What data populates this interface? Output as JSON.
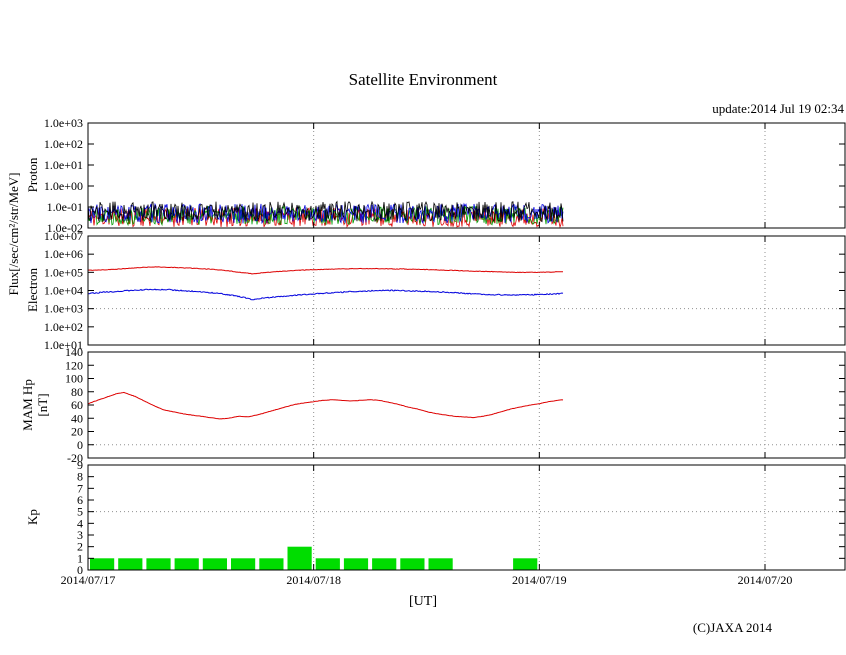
{
  "title": "Satellite Environment",
  "update_text": "update:2014 Jul 19 02:34",
  "xlabel": "[UT]",
  "footer": "(C)JAXA 2014",
  "axis_labels": {
    "flux": "Flux[/sec/cm²/str/MeV]",
    "proton": "Proton",
    "electron": "Electron",
    "hp_line1": "MAM Hp",
    "hp_line2": "[nT]",
    "kp": "Kp"
  },
  "x_ticks": [
    "2014/07/17",
    "2014/07/18",
    "2014/07/19",
    "2014/07/20"
  ],
  "colors": {
    "grid": "#909090",
    "frame": "#000000",
    "red": "#dd0000",
    "blue": "#0000dd",
    "green_noise": "#009900",
    "black_noise": "#000000",
    "kp_green": "#00dd00"
  },
  "chart_data": [
    {
      "id": "proton",
      "type": "line",
      "panel_title": "Proton",
      "yscale": "log",
      "ylim": [
        0.01,
        1000
      ],
      "ytick_values": [
        1000,
        100,
        10,
        1,
        0.1,
        0.01
      ],
      "ytick_labels": [
        "1.0e+03",
        "1.0e+02",
        "1.0e+01",
        "1.0e+00",
        "1.0e-01",
        "1.0e-02"
      ],
      "x_range_hours": [
        0,
        72
      ],
      "x_end_hours": 50.6,
      "series": [
        {
          "name": "proton-red-noise",
          "color": "#dd0000",
          "render": "noise",
          "log_range": [
            -1.95,
            -1.05
          ],
          "seed": 11
        },
        {
          "name": "proton-green-noise",
          "color": "#009900",
          "render": "noise",
          "log_range": [
            -1.85,
            -0.95
          ],
          "seed": 22
        },
        {
          "name": "proton-blue-noise",
          "color": "#0000dd",
          "render": "noise",
          "log_range": [
            -1.78,
            -0.85
          ],
          "seed": 33
        },
        {
          "name": "proton-black-noise",
          "color": "#000000",
          "render": "noise",
          "log_range": [
            -1.7,
            -0.74
          ],
          "seed": 44
        }
      ]
    },
    {
      "id": "electron",
      "type": "line",
      "panel_title": "Electron",
      "yscale": "log",
      "ylim": [
        10,
        10000000.0
      ],
      "ytick_values": [
        10000000.0,
        1000000.0,
        100000.0,
        10000.0,
        1000.0,
        100,
        10
      ],
      "ytick_labels": [
        "1.0e+07",
        "1.0e+06",
        "1.0e+05",
        "1.0e+04",
        "1.0e+03",
        "1.0e+02",
        "1.0e+01"
      ],
      "threshold": 1000,
      "x_range_hours": [
        0,
        72
      ],
      "x_end_hours": 50.6,
      "series": [
        {
          "name": "electron-high",
          "color": "#dd0000",
          "render": "line",
          "jitter": 0.03,
          "seed": 55,
          "points": [
            [
              0,
              130000
            ],
            [
              2,
              140000
            ],
            [
              4,
              160000
            ],
            [
              6,
              190000
            ],
            [
              7,
              200000
            ],
            [
              9,
              185000
            ],
            [
              11,
              170000
            ],
            [
              13,
              150000
            ],
            [
              15,
              120000
            ],
            [
              16.5,
              95000
            ],
            [
              17.5,
              83000
            ],
            [
              18.5,
              92000
            ],
            [
              20,
              110000
            ],
            [
              22,
              128000
            ],
            [
              24,
              140000
            ],
            [
              26,
              150000
            ],
            [
              28,
              158000
            ],
            [
              30,
              160000
            ],
            [
              32,
              156000
            ],
            [
              34,
              150000
            ],
            [
              36,
              142000
            ],
            [
              38,
              132000
            ],
            [
              40,
              121000
            ],
            [
              42,
              112000
            ],
            [
              44,
              105000
            ],
            [
              46,
              100000
            ],
            [
              48,
              100000
            ],
            [
              50,
              107000
            ],
            [
              50.6,
              110000
            ]
          ]
        },
        {
          "name": "electron-low",
          "color": "#0000dd",
          "render": "line",
          "jitter": 0.06,
          "seed": 66,
          "points": [
            [
              0,
              7000
            ],
            [
              2,
              8200
            ],
            [
              4,
              9600
            ],
            [
              6,
              11000
            ],
            [
              8,
              11500
            ],
            [
              10,
              10000
            ],
            [
              12,
              8500
            ],
            [
              14,
              6800
            ],
            [
              16,
              4800
            ],
            [
              17.5,
              3200
            ],
            [
              18.5,
              3700
            ],
            [
              20,
              4500
            ],
            [
              22,
              5500
            ],
            [
              24,
              6500
            ],
            [
              26,
              7500
            ],
            [
              28,
              8600
            ],
            [
              30,
              9600
            ],
            [
              32,
              10200
            ],
            [
              34,
              9600
            ],
            [
              36,
              9000
            ],
            [
              38,
              8000
            ],
            [
              40,
              7000
            ],
            [
              42,
              6200
            ],
            [
              44,
              5800
            ],
            [
              46,
              5600
            ],
            [
              48,
              6000
            ],
            [
              50,
              6600
            ],
            [
              50.6,
              7000
            ]
          ]
        }
      ]
    },
    {
      "id": "hp",
      "type": "line",
      "panel_title": "MAM Hp [nT]",
      "yscale": "linear",
      "ylim": [
        -20,
        140
      ],
      "ytick_values": [
        140,
        120,
        100,
        80,
        60,
        40,
        20,
        0,
        -20
      ],
      "ytick_labels": [
        "140",
        "120",
        "100",
        "80",
        "60",
        "40",
        "20",
        "0",
        "-20"
      ],
      "threshold": 0,
      "x_range_hours": [
        0,
        72
      ],
      "x_end_hours": 50.6,
      "series": [
        {
          "name": "hp-line",
          "color": "#dd0000",
          "render": "line",
          "jitter": 0.5,
          "seed": 77,
          "points": [
            [
              0,
              62
            ],
            [
              1,
              67
            ],
            [
              2,
              72
            ],
            [
              3,
              77
            ],
            [
              3.8,
              79
            ],
            [
              5,
              73
            ],
            [
              6,
              66
            ],
            [
              7,
              59
            ],
            [
              8,
              53
            ],
            [
              9,
              50
            ],
            [
              10,
              47
            ],
            [
              11,
              45
            ],
            [
              12,
              43
            ],
            [
              13,
              41
            ],
            [
              14,
              39
            ],
            [
              15,
              40
            ],
            [
              16,
              43
            ],
            [
              17,
              42
            ],
            [
              18,
              45
            ],
            [
              19,
              49
            ],
            [
              20,
              53
            ],
            [
              21,
              57
            ],
            [
              22,
              61
            ],
            [
              23,
              63
            ],
            [
              24,
              65
            ],
            [
              25,
              67
            ],
            [
              26,
              68
            ],
            [
              27,
              67
            ],
            [
              28,
              66
            ],
            [
              29,
              67
            ],
            [
              30,
              68
            ],
            [
              31,
              67
            ],
            [
              32,
              64
            ],
            [
              33,
              61
            ],
            [
              34,
              57
            ],
            [
              35,
              54
            ],
            [
              36,
              50
            ],
            [
              37,
              47
            ],
            [
              38,
              45
            ],
            [
              39,
              43
            ],
            [
              40,
              42
            ],
            [
              41,
              41
            ],
            [
              42,
              43
            ],
            [
              43,
              46
            ],
            [
              44,
              50
            ],
            [
              45,
              54
            ],
            [
              46,
              57
            ],
            [
              47,
              60
            ],
            [
              48,
              62
            ],
            [
              49,
              65
            ],
            [
              50,
              67
            ],
            [
              50.6,
              68
            ]
          ]
        }
      ]
    },
    {
      "id": "kp",
      "type": "bar",
      "panel_title": "Kp",
      "yscale": "linear",
      "ylim": [
        0,
        9
      ],
      "ytick_values": [
        9,
        8,
        7,
        6,
        5,
        4,
        3,
        2,
        1,
        0
      ],
      "ytick_labels": [
        "9",
        "8",
        "7",
        "6",
        "5",
        "4",
        "3",
        "2",
        "1",
        "0"
      ],
      "threshold": 5,
      "x_range_hours": [
        0,
        72
      ],
      "bar": {
        "color": "#00dd00",
        "interval_hours": 3,
        "start_date": "2014/07/17",
        "values": [
          1,
          1,
          1,
          1,
          1,
          1,
          1,
          2,
          1,
          1,
          1,
          1,
          1,
          0,
          0,
          1
        ]
      }
    }
  ]
}
